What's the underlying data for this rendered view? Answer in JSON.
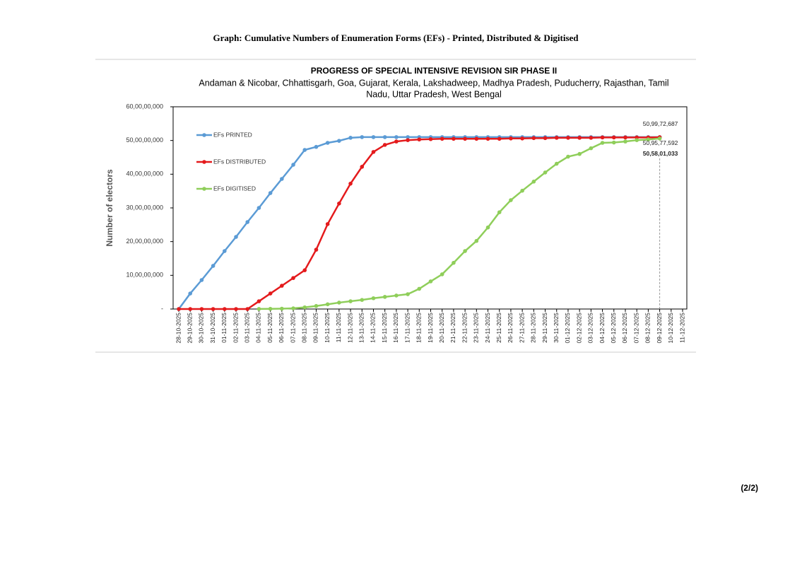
{
  "header": {
    "title": "Graph: Cumulative Numbers of Enumeration Forms (EFs) - Printed, Distributed & Digitised"
  },
  "page_number": "(2/2)",
  "chart_data": {
    "type": "line",
    "title": "PROGRESS OF SPECIAL INTENSIVE REVISION SIR PHASE II",
    "subtitle": [
      "Andaman & Nicobar, Chhattisgarh, Goa, Gujarat, Kerala, Lakshadweep, Madhya Pradesh, Puducherry, Rajasthan, Tamil",
      "Nadu, Uttar Pradesh, West Bengal"
    ],
    "y_label": "Number of electors",
    "categories": [
      "28-10-2025",
      "29-10-2025",
      "30-10-2025",
      "31-10-2025",
      "01-11-2025",
      "02-11-2025",
      "03-11-2025",
      "04-11-2025",
      "05-11-2025",
      "06-11-2025",
      "07-11-2025",
      "08-11-2025",
      "09-11-2025",
      "10-11-2025",
      "11-11-2025",
      "12-11-2025",
      "13-11-2025",
      "14-11-2025",
      "15-11-2025",
      "16-11-2025",
      "17-11-2025",
      "18-11-2025",
      "19-11-2025",
      "20-11-2025",
      "21-11-2025",
      "22-11-2025",
      "23-11-2025",
      "24-11-2025",
      "25-11-2025",
      "26-11-2025",
      "27-11-2025",
      "28-11-2025",
      "29-11-2025",
      "30-11-2025",
      "01-12-2025",
      "02-12-2025",
      "03-12-2025",
      "04-12-2025",
      "05-12-2025",
      "06-12-2025",
      "07-12-2025",
      "08-12-2025",
      "09-12-2025",
      "10-12-2025",
      "11-12-2025"
    ],
    "ylim": [
      0,
      600000000
    ],
    "yticks": [
      {
        "value": 0,
        "label": "-"
      },
      {
        "value": 100000000,
        "label": "10,00,00,000"
      },
      {
        "value": 200000000,
        "label": "20,00,00,000"
      },
      {
        "value": 300000000,
        "label": "30,00,00,000"
      },
      {
        "value": 400000000,
        "label": "40,00,00,000"
      },
      {
        "value": 500000000,
        "label": "50,00,00,000"
      },
      {
        "value": 600000000,
        "label": "60,00,00,000"
      }
    ],
    "series": [
      {
        "name": "EFs PRINTED",
        "color": "#5b9bd5",
        "values": [
          0,
          46000000,
          86000000,
          128000000,
          172000000,
          214000000,
          258000000,
          300000000,
          344000000,
          386000000,
          428000000,
          472000000,
          481000000,
          493000000,
          499000000,
          508000000,
          510000000,
          510000000,
          510000000,
          510000000,
          510000000,
          510000000,
          510000000,
          510000000,
          510000000,
          510000000,
          510000000,
          510000000,
          510000000,
          510000000,
          510000000,
          510000000,
          510000000,
          510000000,
          510000000,
          510000000,
          510000000,
          510000000,
          510000000,
          510000000,
          510000000,
          510000000,
          509972687,
          null,
          null
        ],
        "value_labels": [
          null,
          null,
          null,
          null,
          null,
          null,
          null,
          null,
          null,
          null,
          null,
          null,
          null,
          null,
          null,
          null,
          null,
          null,
          null,
          null,
          null,
          null,
          null,
          null,
          null,
          null,
          null,
          null,
          null,
          null,
          null,
          null,
          null,
          null,
          null,
          null,
          null,
          null,
          null,
          null,
          null,
          null,
          "50,99,72,687",
          null,
          null
        ]
      },
      {
        "name": "EFs DISTRIBUTED",
        "color": "#e41a1c",
        "values": [
          0,
          0,
          0,
          0,
          0,
          0,
          0,
          23000000,
          46000000,
          69000000,
          92000000,
          115000000,
          176000000,
          252000000,
          313000000,
          372000000,
          422000000,
          466000000,
          487000000,
          497000000,
          501000000,
          503000000,
          504000000,
          505000000,
          505000000,
          505000000,
          505000000,
          505000000,
          505000000,
          506000000,
          506000000,
          507000000,
          507000000,
          508000000,
          508000000,
          508000000,
          508000000,
          509000000,
          509000000,
          509000000,
          509000000,
          509000000,
          509577592,
          null,
          null
        ],
        "value_labels": [
          null,
          null,
          null,
          null,
          null,
          null,
          null,
          null,
          null,
          null,
          null,
          null,
          null,
          null,
          null,
          null,
          null,
          null,
          null,
          null,
          null,
          null,
          null,
          null,
          null,
          null,
          null,
          null,
          null,
          null,
          null,
          null,
          null,
          null,
          null,
          null,
          null,
          null,
          null,
          null,
          null,
          null,
          "50,95,77,592",
          null,
          null
        ]
      },
      {
        "name": "EFs DIGITISED",
        "color": "#8fce5a",
        "values": [
          null,
          null,
          null,
          null,
          null,
          null,
          null,
          200000,
          500000,
          1000000,
          2000000,
          5000000,
          9000000,
          14000000,
          19000000,
          23000000,
          27000000,
          32000000,
          36000000,
          40000000,
          44000000,
          60000000,
          82000000,
          103000000,
          137000000,
          172000000,
          202000000,
          242000000,
          287000000,
          323000000,
          351000000,
          378000000,
          405000000,
          431000000,
          452000000,
          460000000,
          477000000,
          493000000,
          494000000,
          497000000,
          501000000,
          503000000,
          505801033,
          null,
          null
        ],
        "value_labels": [
          null,
          null,
          null,
          null,
          null,
          null,
          null,
          null,
          null,
          null,
          null,
          null,
          null,
          null,
          null,
          null,
          null,
          null,
          null,
          null,
          null,
          null,
          null,
          null,
          null,
          null,
          null,
          null,
          null,
          null,
          null,
          null,
          null,
          null,
          null,
          null,
          null,
          null,
          null,
          null,
          null,
          null,
          "50,58,01,033",
          null,
          null
        ]
      }
    ]
  }
}
